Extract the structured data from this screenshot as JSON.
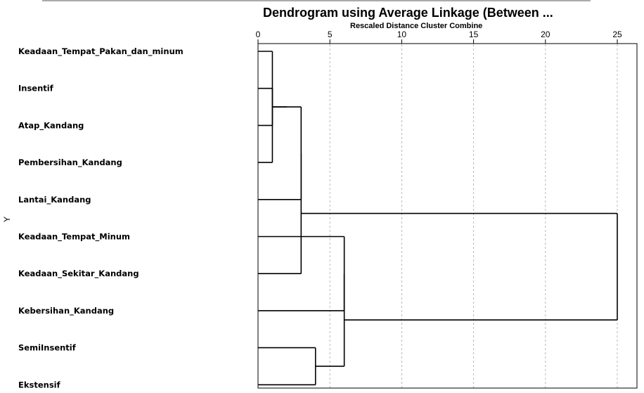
{
  "chart_data": {
    "type": "dendrogram",
    "title": "Dendrogram using Average Linkage (Between ...",
    "subtitle": "Rescaled Distance Cluster Combine",
    "ylabel": "Y",
    "xlim": [
      0,
      25
    ],
    "x_ticks": [
      0,
      5,
      10,
      15,
      20,
      25
    ],
    "grid": true,
    "leaves": [
      "Keadaan_Tempat_Pakan_dan_minum",
      "Insentif",
      "Atap_Kandang",
      "Pembersihan_Kandang",
      "Lantai_Kandang",
      "Keadaan_Tempat_Minum",
      "Keadaan_Sekitar_Kandang",
      "Kebersihan_Kandang",
      "SemiInsentif",
      "Ekstensif"
    ],
    "merges": [
      {
        "left": "leaf:0",
        "right": "leaf:3",
        "height": 1
      },
      {
        "left": "leaf:1",
        "right": "leaf:2",
        "height": 1
      },
      {
        "left": "merge:0",
        "right": "merge:1",
        "height": 2
      },
      {
        "left": "merge:2",
        "right": "leaf:4",
        "height": 3
      },
      {
        "left": "merge:3",
        "right": "leaf:6",
        "height": 3
      },
      {
        "left": "leaf:8",
        "right": "leaf:9",
        "height": 4
      },
      {
        "left": "leaf:5",
        "right": "leaf:7",
        "height": 6
      },
      {
        "left": "merge:6",
        "right": "merge:5",
        "height": 6
      },
      {
        "left": "merge:4",
        "right": "merge:7",
        "height": 25
      }
    ]
  }
}
